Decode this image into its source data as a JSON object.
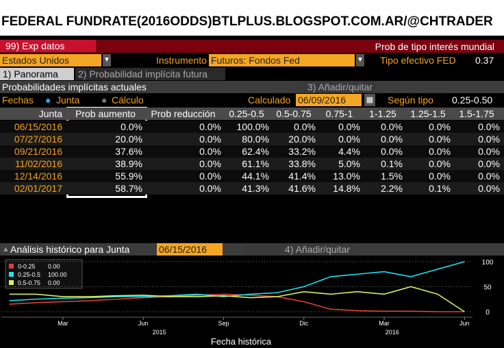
{
  "header": {
    "title": "FEDERAL FUNDRATE(2016ODDS)BTLPLUS.BLOGSPOT.COM.AR/@CHTRADER"
  },
  "toolbar": {
    "button": "99) Exp datos",
    "right_title": "Prob de tipo interés mundial"
  },
  "selectors": {
    "country": "Estados Unidos",
    "instrument_label": "Instrumento",
    "instrument": "Futuros: Fondos Fed",
    "rate_label": "Tipo efectivo FED",
    "rate": "0.37"
  },
  "tabs": [
    "1) Panorama",
    "2) Probabilidad implícita futura"
  ],
  "section": {
    "title": "Probabilidades implícitas actuales",
    "button": "3) Añadir/quitar"
  },
  "options": {
    "dates_label": "Fechas",
    "radio_1": "Junta",
    "radio_2": "Cálculo",
    "calc_label": "Calculado",
    "calc_date": "06/09/2016",
    "type_label": "Según tipo",
    "type_value": "0.25-0.50"
  },
  "table": {
    "columns": [
      "Junta",
      "Prob aumento",
      "Prob reducción",
      "0.25-0.5",
      "0.5-0.75",
      "0.75-1",
      "1-1.25",
      "1.25-1.5",
      "1.5-1.75"
    ],
    "rows": [
      [
        "06/15/2016",
        "0.0%",
        "0.0%",
        "100.0%",
        "0.0%",
        "0.0%",
        "0.0%",
        "0.0%",
        "0.0%"
      ],
      [
        "07/27/2016",
        "20.0%",
        "0.0%",
        "80.0%",
        "20.0%",
        "0.0%",
        "0.0%",
        "0.0%",
        "0.0%"
      ],
      [
        "09/21/2016",
        "37.6%",
        "0.0%",
        "62.4%",
        "33.2%",
        "4.4%",
        "0.0%",
        "0.0%",
        "0.0%"
      ],
      [
        "11/02/2016",
        "38.9%",
        "0.0%",
        "61.1%",
        "33.8%",
        "5.0%",
        "0.1%",
        "0.0%",
        "0.0%"
      ],
      [
        "12/14/2016",
        "55.9%",
        "0.0%",
        "44.1%",
        "41.4%",
        "13.0%",
        "1.5%",
        "0.0%",
        "0.0%"
      ],
      [
        "02/01/2017",
        "58.7%",
        "0.0%",
        "41.3%",
        "41.6%",
        "14.8%",
        "2.2%",
        "0.1%",
        "0.0%"
      ]
    ]
  },
  "history": {
    "title": "Análisis histórico para Junta",
    "date": "06/15/2016",
    "button": "4) Añadir/quitar"
  },
  "chart_data": {
    "type": "line",
    "xlabel": "Fecha histórica",
    "x": [
      0,
      1,
      2,
      3,
      4,
      5,
      6,
      7,
      8,
      9,
      10,
      11,
      12,
      13,
      14,
      15,
      16,
      17
    ],
    "series": [
      {
        "name": "0-0.25",
        "last": "0.00",
        "color": "#e0403a",
        "values": [
          15,
          18,
          20,
          22,
          25,
          28,
          30,
          33,
          35,
          33,
          30,
          20,
          5,
          2,
          1,
          1,
          0,
          0
        ]
      },
      {
        "name": "0.25-0.5",
        "last": "100.00",
        "color": "#22e0f0",
        "values": [
          22,
          25,
          27,
          28,
          30,
          30,
          32,
          35,
          30,
          35,
          38,
          50,
          70,
          75,
          80,
          70,
          85,
          100
        ]
      },
      {
        "name": "0.5-0.75",
        "last": "0.00",
        "color": "#d8f060",
        "values": [
          35,
          35,
          30,
          30,
          32,
          33,
          30,
          30,
          32,
          28,
          30,
          40,
          35,
          40,
          35,
          50,
          35,
          0
        ]
      }
    ],
    "xlim": [
      -0.3,
      17.3
    ],
    "xticks": [
      {
        "value": 2,
        "label": "Mar"
      },
      {
        "value": 5,
        "label": "Jun"
      },
      {
        "value": 8,
        "label": "Sep"
      },
      {
        "value": 11,
        "label": "Dic"
      },
      {
        "value": 14,
        "label": "Mar"
      },
      {
        "value": 17,
        "label": "Jun"
      }
    ],
    "year_ticks": [
      {
        "value": 5.6,
        "label": "2015"
      },
      {
        "value": 14.3,
        "label": "2016"
      }
    ],
    "ylim": [
      0,
      100
    ],
    "yticks": [
      0,
      50,
      100
    ]
  }
}
